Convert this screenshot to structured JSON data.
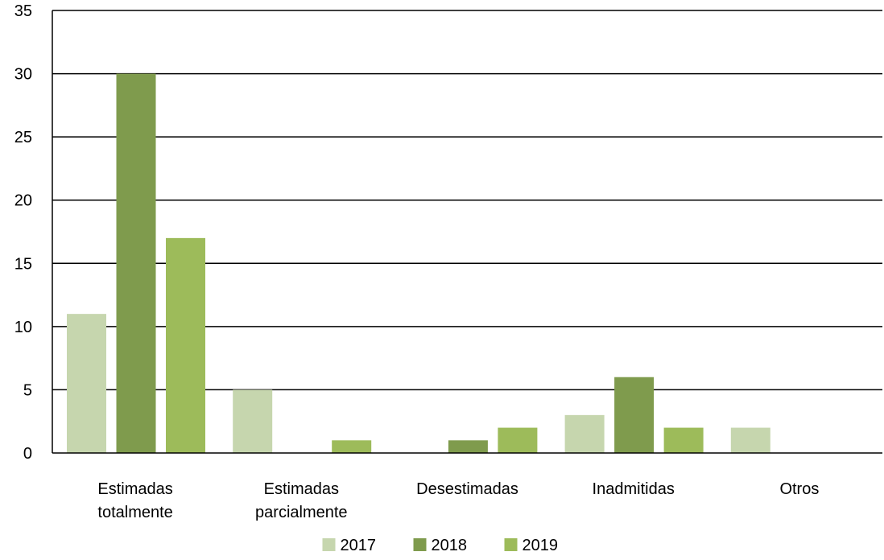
{
  "chart_data": {
    "type": "bar",
    "categories": [
      [
        "Estimadas",
        "totalmente"
      ],
      [
        "Estimadas",
        "parcialmente"
      ],
      [
        "Desestimadas"
      ],
      [
        "Inadmitidas"
      ],
      [
        "Otros"
      ]
    ],
    "series": [
      {
        "name": "2017",
        "color": "#c6d6ae",
        "values": [
          11,
          5,
          0,
          3,
          2
        ]
      },
      {
        "name": "2018",
        "color": "#7f9b4d",
        "values": [
          30,
          0,
          1,
          6,
          0
        ]
      },
      {
        "name": "2019",
        "color": "#9dbb5a",
        "values": [
          17,
          1,
          2,
          2,
          0
        ]
      }
    ],
    "ylim": [
      0,
      35
    ],
    "yticks": [
      0,
      5,
      10,
      15,
      20,
      25,
      30,
      35
    ],
    "grid": true,
    "legend": "bottom",
    "title": "",
    "xlabel": "",
    "ylabel": ""
  }
}
